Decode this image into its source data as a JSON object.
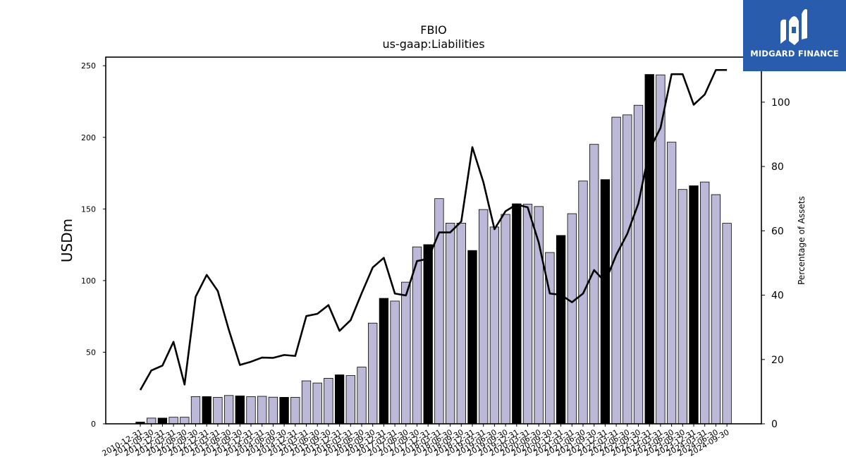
{
  "brand": {
    "name": "MIDGARD FINANCE",
    "logo_icon": "midgard-logo-icon",
    "background": "#2a5cae"
  },
  "chart_data": {
    "type": "bar",
    "title": "FBIO",
    "subtitle": "us-gaap:Liabilities",
    "ylabel": "USDm",
    "y2label": "Percentage of Assets",
    "ylim": [
      0,
      256
    ],
    "y2lim": [
      0,
      114
    ],
    "yticks": [
      0,
      50,
      100,
      150,
      200,
      250
    ],
    "y2ticks": [
      0,
      20,
      40,
      60,
      80,
      100
    ],
    "categories": [
      "2010-12-31",
      "2011-09-30",
      "2011-12-31",
      "2012-03-31",
      "2012-06-30",
      "2012-09-30",
      "2012-12-31",
      "2013-03-31",
      "2013-06-30",
      "2013-09-30",
      "2013-12-31",
      "2014-03-31",
      "2014-06-30",
      "2014-09-30",
      "2014-12-31",
      "2015-03-31",
      "2015-06-30",
      "2015-09-30",
      "2015-12-31",
      "2016-03-31",
      "2016-06-30",
      "2016-09-30",
      "2016-12-31",
      "2017-03-31",
      "2017-06-30",
      "2017-09-30",
      "2017-12-31",
      "2018-03-31",
      "2018-06-30",
      "2018-09-30",
      "2018-12-31",
      "2019-03-31",
      "2019-06-30",
      "2019-09-30",
      "2019-12-31",
      "2020-03-31",
      "2020-06-30",
      "2020-09-30",
      "2020-12-31",
      "2021-03-31",
      "2021-06-30",
      "2021-09-30",
      "2021-12-31",
      "2022-03-31",
      "2022-06-30",
      "2022-09-30",
      "2022-12-31",
      "2023-03-31",
      "2023-06-30",
      "2023-09-30",
      "2023-12-31",
      "2024-03-31",
      "2024-06-30",
      "2024-09-30"
    ],
    "series": [
      {
        "type": "bar",
        "values": [
          1.2,
          4,
          4,
          4.6,
          4.6,
          19,
          19,
          18.5,
          19.8,
          19.5,
          19,
          19.2,
          18.6,
          18.5,
          18.5,
          30,
          28.5,
          31.8,
          34.2,
          33.7,
          39.6,
          70.3,
          87.6,
          85.7,
          98.9,
          123.5,
          125.1,
          157.2,
          140.1,
          140.1,
          121,
          149.6,
          137.4,
          146.2,
          153.6,
          153.3,
          151.7,
          119.6,
          131.5,
          146.7,
          169.5,
          195.1,
          170.5,
          214.1,
          215.7,
          222.4,
          243.9,
          243.6,
          196.6,
          163.6,
          166.2,
          168.8,
          160,
          140
        ],
        "color_light": "#bcb9d8",
        "color_dark": "#000000",
        "dark_indices": [
          0,
          2,
          6,
          9,
          13,
          18,
          22,
          26,
          30,
          34,
          38,
          42,
          46,
          50
        ]
      },
      {
        "type": "line",
        "axis": "right",
        "values": [
          10.5,
          16.6,
          18.1,
          25.5,
          12.2,
          39.5,
          46.3,
          41.3,
          29.2,
          18.3,
          19.3,
          20.6,
          20.5,
          21.4,
          21.1,
          33.5,
          34.2,
          36.9,
          28.9,
          32.2,
          40.6,
          48.6,
          51.6,
          40.5,
          39.9,
          50.6,
          51.3,
          59.5,
          59.5,
          62.9,
          86,
          75.1,
          60.5,
          66.1,
          68.2,
          67.3,
          56.3,
          40.5,
          40.1,
          37.8,
          40.5,
          47.8,
          44.1,
          52.5,
          59.1,
          68.5,
          85.2,
          92,
          108.7,
          108.7,
          99.2,
          102.4,
          110,
          110
        ],
        "color": "#000000"
      }
    ]
  }
}
